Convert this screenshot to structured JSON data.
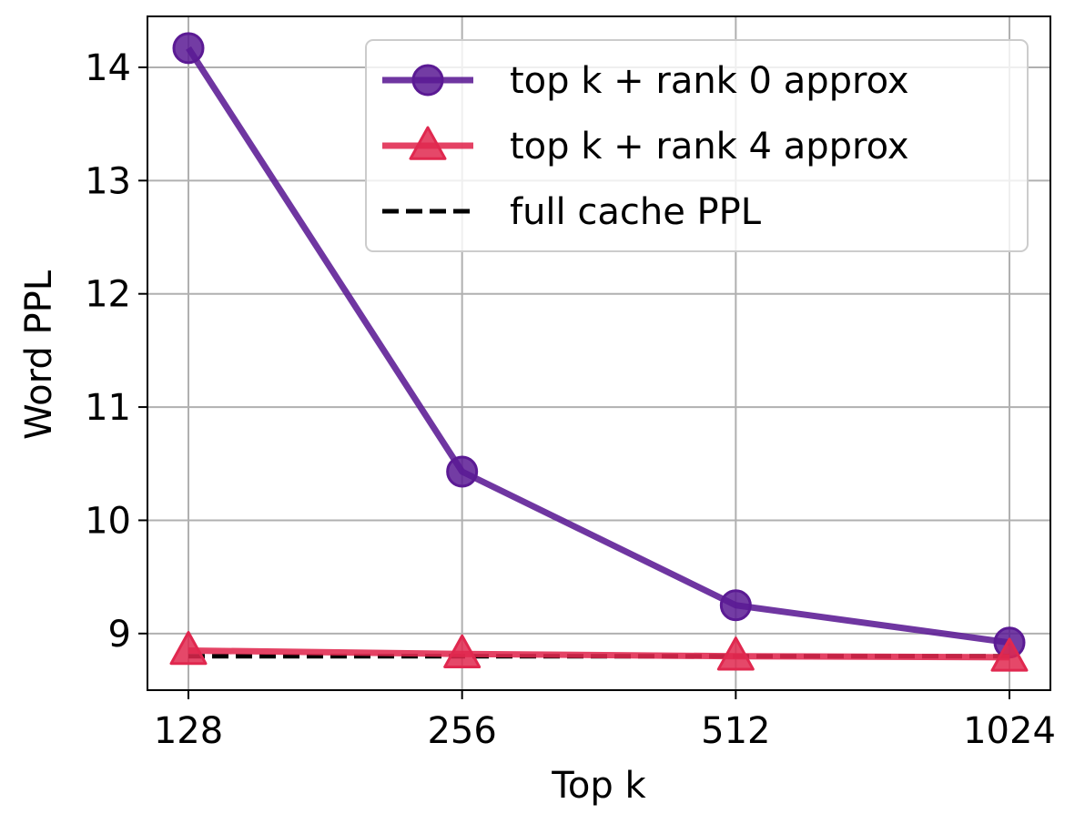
{
  "chart_data": {
    "type": "line",
    "title": "",
    "xlabel": "Top k",
    "ylabel": "Word PPL",
    "x": [
      128,
      256,
      512,
      1024
    ],
    "x_scale": "log2",
    "x_ticks": [
      128,
      256,
      512,
      1024
    ],
    "y_ticks": [
      9,
      10,
      11,
      12,
      13,
      14
    ],
    "ylim": [
      8.5,
      14.45
    ],
    "grid": true,
    "legend_position": "top-right",
    "series": [
      {
        "name": "top k + rank 0 approx",
        "values": [
          14.17,
          10.43,
          9.25,
          8.92
        ],
        "color": "#5b1a94",
        "marker": "circle",
        "line_style": "solid"
      },
      {
        "name": "top k + rank 4 approx",
        "values": [
          8.85,
          8.82,
          8.8,
          8.79
        ],
        "color": "#e0284f",
        "marker": "triangle",
        "line_style": "solid"
      },
      {
        "name": "full cache PPL",
        "values": [
          8.8,
          8.8,
          8.8,
          8.8
        ],
        "color": "#000000",
        "marker": "none",
        "line_style": "dashed"
      }
    ]
  }
}
